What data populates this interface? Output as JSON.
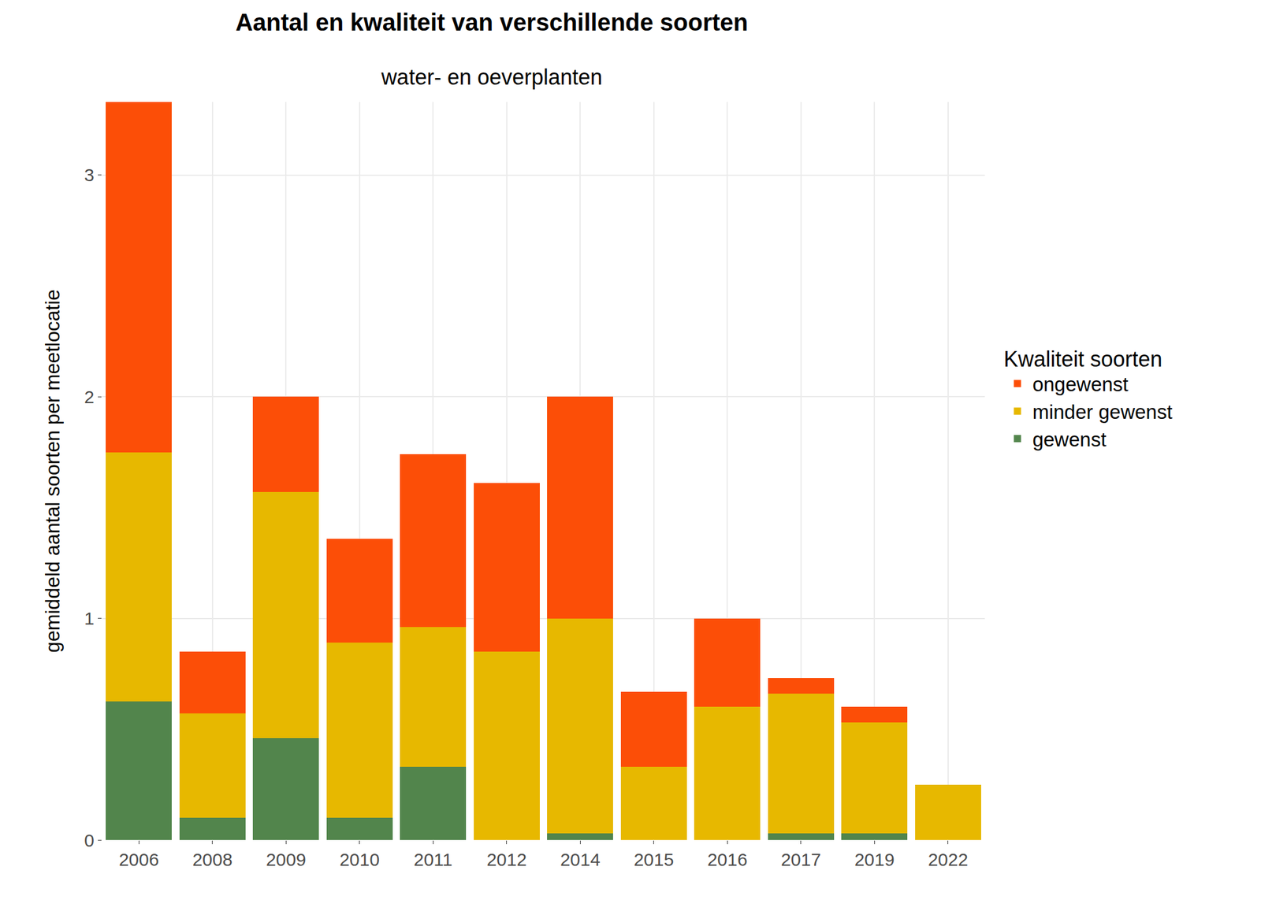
{
  "chart_data": {
    "type": "bar",
    "stacked": true,
    "title": "Aantal en kwaliteit van verschillende soorten",
    "subtitle": "water- en oeverplanten",
    "ylabel": "gemiddeld aantal soorten per meetlocatie",
    "legend_title": "Kwaliteit soorten",
    "legend": "right",
    "grid": true,
    "categories": [
      "2006",
      "2008",
      "2009",
      "2010",
      "2011",
      "2012",
      "2014",
      "2015",
      "2016",
      "2017",
      "2019",
      "2022"
    ],
    "series": [
      {
        "name": "gewenst",
        "color": "#52854C",
        "values": [
          0.625,
          0.1,
          0.46,
          0.1,
          0.33,
          0,
          0.03,
          0,
          0,
          0.03,
          0.03,
          0
        ]
      },
      {
        "name": "minder gewenst",
        "color": "#E7B800",
        "values": [
          1.125,
          0.47,
          1.11,
          0.79,
          0.63,
          0.85,
          0.97,
          0.33,
          0.6,
          0.63,
          0.5,
          0.25
        ]
      },
      {
        "name": "ongewenst",
        "color": "#FC4E07",
        "values": [
          1.58,
          0.28,
          0.43,
          0.47,
          0.78,
          0.76,
          1.0,
          0.34,
          0.4,
          0.07,
          0.07,
          0
        ]
      }
    ],
    "ylim": [
      0,
      3.33
    ],
    "yticks": [
      0,
      1,
      2,
      3
    ]
  }
}
